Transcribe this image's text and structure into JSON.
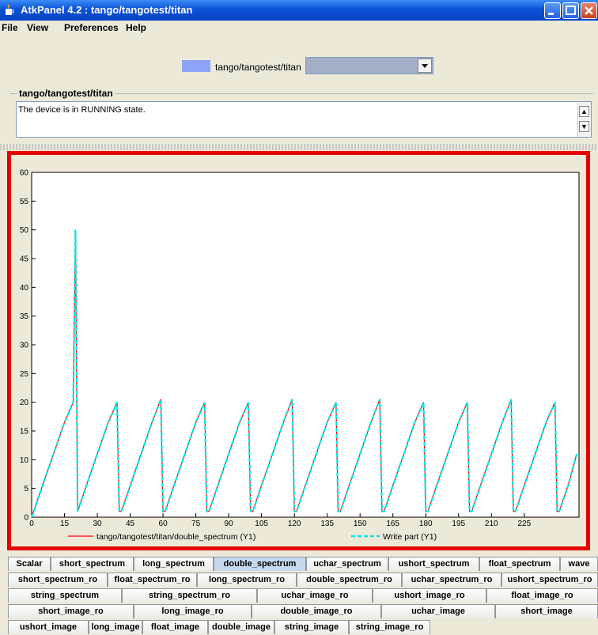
{
  "window": {
    "title": "AtkPanel 4.2 : tango/tangotest/titan",
    "app_icon": "java-cup-icon"
  },
  "menu": {
    "items": [
      "File",
      "View",
      "Preferences",
      "Help"
    ]
  },
  "device": {
    "name": "tango/tangotest/titan",
    "combo_value": "",
    "color": "#8ea4f6"
  },
  "status_group": {
    "title": "tango/tangotest/titan",
    "text": "The device is in RUNNING state."
  },
  "chart_data": {
    "type": "line",
    "xlim": [
      0,
      250
    ],
    "ylim": [
      0,
      60
    ],
    "x_ticks": [
      0,
      15,
      30,
      45,
      60,
      75,
      90,
      105,
      120,
      135,
      150,
      165,
      180,
      195,
      210,
      225
    ],
    "y_ticks": [
      0,
      5,
      10,
      15,
      20,
      25,
      30,
      35,
      40,
      45,
      50,
      55,
      60
    ],
    "series": [
      {
        "name": "tango/tangotest/titan/double_spectrum (Y1)",
        "color": "#ff0000",
        "style": "solid",
        "x": [
          0,
          5,
          10,
          15,
          19,
          20,
          21,
          25,
          30,
          35,
          39,
          40,
          41,
          45,
          50,
          55,
          59,
          60,
          61,
          65,
          70,
          75,
          79,
          80,
          81,
          85,
          90,
          95,
          99,
          100,
          101,
          105,
          110,
          115,
          119,
          120,
          121,
          125,
          130,
          135,
          139,
          140,
          141,
          145,
          150,
          155,
          159,
          160,
          161,
          165,
          170,
          175,
          179,
          180,
          181,
          185,
          190,
          195,
          199,
          200,
          201,
          205,
          210,
          215,
          219,
          220,
          221,
          225,
          230,
          235,
          239,
          240,
          241,
          245,
          249
        ],
        "y": [
          0,
          5.5,
          11,
          16.5,
          20,
          50,
          1,
          5.5,
          11,
          16.5,
          20,
          1,
          1,
          5.5,
          11,
          16.5,
          20.5,
          1,
          1,
          5.5,
          11,
          16.5,
          20,
          1,
          1,
          5.5,
          11,
          16.5,
          20,
          1,
          1,
          5.5,
          11,
          16.5,
          20.5,
          1,
          1,
          5.5,
          11,
          16.5,
          20,
          1,
          1,
          5.5,
          11,
          16.5,
          20.5,
          1,
          1,
          5.5,
          11,
          16.5,
          20,
          1,
          1,
          5.5,
          11,
          16.5,
          20,
          1,
          1,
          5.5,
          11,
          16.5,
          20.5,
          1,
          1,
          5.5,
          11,
          16.5,
          20,
          1,
          1,
          5.5,
          11
        ]
      },
      {
        "name": "Write part (Y1)",
        "color": "#00e6e6",
        "style": "dashed",
        "same_as": "tango/tangotest/titan/double_spectrum (Y1)"
      }
    ],
    "legend_position": "bottom",
    "grid": false
  },
  "tabs": {
    "rows": [
      [
        "ushort_image",
        "long_image",
        "float_image",
        "double_image",
        "string_image",
        "string_image_ro"
      ],
      [
        "short_image_ro",
        "long_image_ro",
        "double_image_ro",
        "uchar_image",
        "short_image"
      ],
      [
        "string_spectrum",
        "string_spectrum_ro",
        "uchar_image_ro",
        "ushort_image_ro",
        "float_image_ro"
      ],
      [
        "short_spectrum_ro",
        "float_spectrum_ro",
        "long_spectrum_ro",
        "double_spectrum_ro",
        "uchar_spectrum_ro",
        "ushort_spectrum_ro"
      ],
      [
        "Scalar",
        "short_spectrum",
        "long_spectrum",
        "double_spectrum",
        "uchar_spectrum",
        "ushort_spectrum",
        "float_spectrum",
        "wave"
      ]
    ],
    "selected": "double_spectrum"
  }
}
